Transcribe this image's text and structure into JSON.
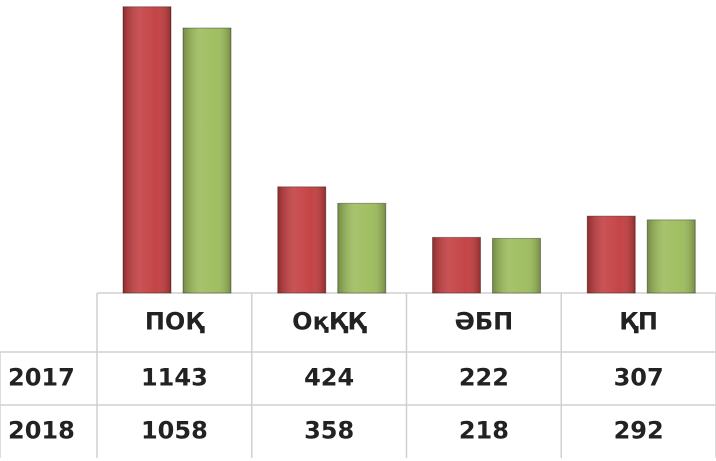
{
  "chart_data": {
    "type": "bar",
    "categories": [
      "ПОҚ",
      "ОқҚҚ",
      "ӘБП",
      "ҚП"
    ],
    "series": [
      {
        "name": "2017",
        "color": "#c23b3d",
        "values": [
          1143,
          424,
          222,
          307
        ]
      },
      {
        "name": "2018",
        "color": "#9bbb59",
        "values": [
          1058,
          358,
          218,
          292
        ]
      }
    ],
    "ylim": [
      0,
      1150
    ]
  }
}
